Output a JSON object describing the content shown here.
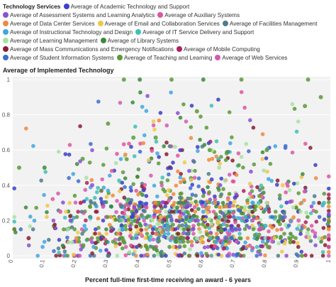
{
  "legend": {
    "title": "Technology Services",
    "items": [
      {
        "label": "Average of Academic Technology and Support",
        "color": "#3b3fc9"
      },
      {
        "label": "Average of Assessment Systems and Learning Analytics",
        "color": "#8a4fd6"
      },
      {
        "label": "Average of Auxiliary Systems",
        "color": "#e0559f"
      },
      {
        "label": "Average of Data Center Services",
        "color": "#f08a3c"
      },
      {
        "label": "Average of Email and Collaboration Services",
        "color": "#efc84a"
      },
      {
        "label": "Average of Facilities Management",
        "color": "#4e7d8a"
      },
      {
        "label": "Average of Instructional Technology and Design",
        "color": "#3fa6e0"
      },
      {
        "label": "Average of IT Service Delivery and Support",
        "color": "#3fc0b8"
      },
      {
        "label": "Average of Learning Management",
        "color": "#a6e3a0"
      },
      {
        "label": "Average of Library Systems",
        "color": "#3c8a3a"
      },
      {
        "label": "Average of Mass Communications and Emergency Notifications",
        "color": "#8a1f2e"
      },
      {
        "label": "Average of Mobile Computing",
        "color": "#b02060"
      },
      {
        "label": "Average of Student Information Systems",
        "color": "#3a6fd0"
      },
      {
        "label": "Average of Teaching and Learning",
        "color": "#5a9a3a"
      },
      {
        "label": "Average of Web Services",
        "color": "#d45ab0"
      }
    ]
  },
  "chart_data": {
    "type": "scatter",
    "ylabel": "Average of Implemented Technology",
    "xlabel": "Percent full-time first-time receiving an award - 6 years",
    "xlim": [
      0,
      1
    ],
    "ylim": [
      0,
      1
    ],
    "x_ticks": [
      "0",
      "0.1",
      "0.2",
      "0.3",
      "0.4",
      "0.5",
      "0.6",
      "0.7",
      "0.8",
      "0.9",
      "1"
    ],
    "y_ticks": [
      "0",
      "0.2",
      "0.4",
      "0.6",
      "0.8",
      "1"
    ],
    "background": "#f2f2f2",
    "grid": true,
    "sample_points": [
      {
        "x": 0.02,
        "y": 0.5,
        "s": 13
      },
      {
        "x": 0.1,
        "y": 0.5,
        "s": 9
      },
      {
        "x": 0.22,
        "y": 0.55,
        "s": 13
      },
      {
        "x": 0.35,
        "y": 1.0,
        "s": 13
      },
      {
        "x": 0.4,
        "y": 1.0,
        "s": 9
      },
      {
        "x": 0.5,
        "y": 1.0,
        "s": 13
      },
      {
        "x": 0.6,
        "y": 1.0,
        "s": 9
      },
      {
        "x": 0.72,
        "y": 1.0,
        "s": 13
      },
      {
        "x": 0.93,
        "y": 1.0,
        "s": 13
      },
      {
        "x": 0.97,
        "y": 0.9,
        "s": 13
      },
      {
        "x": 0.92,
        "y": 0.85,
        "s": 13
      },
      {
        "x": 0.58,
        "y": 0.82,
        "s": 13
      },
      {
        "x": 0.38,
        "y": 0.67,
        "s": 13
      },
      {
        "x": 0.45,
        "y": 0.67,
        "s": 13
      },
      {
        "x": 0.62,
        "y": 0.6,
        "s": 13
      },
      {
        "x": 0.8,
        "y": 0.6,
        "s": 13
      },
      {
        "x": 0.3,
        "y": 0.75,
        "s": 13
      },
      {
        "x": 0.25,
        "y": 0.4,
        "s": 1
      },
      {
        "x": 0.45,
        "y": 0.3,
        "s": 3
      },
      {
        "x": 0.5,
        "y": 0.2,
        "s": 12
      },
      {
        "x": 0.6,
        "y": 0.25,
        "s": 6
      },
      {
        "x": 0.7,
        "y": 0.33,
        "s": 0
      },
      {
        "x": 0.15,
        "y": 0.25,
        "s": 2
      },
      {
        "x": 0.05,
        "y": 0.1,
        "s": 10
      },
      {
        "x": 0.9,
        "y": 0.2,
        "s": 14
      },
      {
        "x": 0.85,
        "y": 0.4,
        "s": 4
      },
      {
        "x": 0.65,
        "y": 0.5,
        "s": 8
      },
      {
        "x": 0.98,
        "y": 0.3,
        "s": 7
      },
      {
        "x": 0.55,
        "y": 0.1,
        "s": 11
      },
      {
        "x": 0.3,
        "y": 0.0,
        "s": 5
      }
    ]
  }
}
